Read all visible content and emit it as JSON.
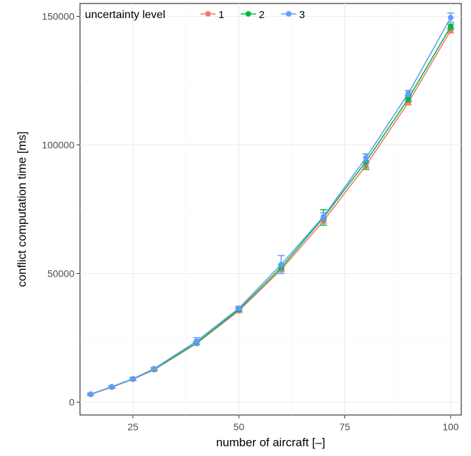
{
  "chart_data": {
    "type": "line",
    "xlabel": "number of aircraft [–]",
    "ylabel": "conflict computation time [ms]",
    "xlim": [
      12.5,
      102.5
    ],
    "ylim": [
      -5000,
      155000
    ],
    "x_ticks": [
      25,
      50,
      75,
      100
    ],
    "x_tick_labels": [
      "25",
      "50",
      "75",
      "100"
    ],
    "y_ticks": [
      0,
      50000,
      100000,
      150000
    ],
    "y_tick_labels": [
      "0",
      "50000",
      "100000",
      "150000"
    ],
    "grid": true,
    "legend": {
      "title": "uncertainty level",
      "position": "top-left"
    },
    "x": [
      15,
      20,
      25,
      30,
      40,
      50,
      60,
      70,
      80,
      90,
      100
    ],
    "series": [
      {
        "name": "1",
        "color": "#F8766D",
        "values": [
          3000,
          5800,
          8900,
          12600,
          22800,
          35500,
          51500,
          70500,
          92000,
          116500,
          144500
        ],
        "error": [
          400,
          400,
          500,
          500,
          600,
          700,
          800,
          900,
          900,
          900,
          1000
        ]
      },
      {
        "name": "2",
        "color": "#00BA38",
        "values": [
          3050,
          5900,
          9000,
          12800,
          23000,
          36000,
          52300,
          71800,
          93500,
          118000,
          146000
        ],
        "error": [
          400,
          400,
          500,
          500,
          600,
          700,
          900,
          3000,
          3000,
          1200,
          1000
        ]
      },
      {
        "name": "3",
        "color": "#619CFF",
        "values": [
          3100,
          6000,
          9100,
          13000,
          23700,
          36500,
          53500,
          72200,
          95000,
          120000,
          149500
        ],
        "error": [
          400,
          400,
          500,
          500,
          1400,
          800,
          3500,
          1500,
          1500,
          1200,
          1800
        ]
      }
    ]
  }
}
